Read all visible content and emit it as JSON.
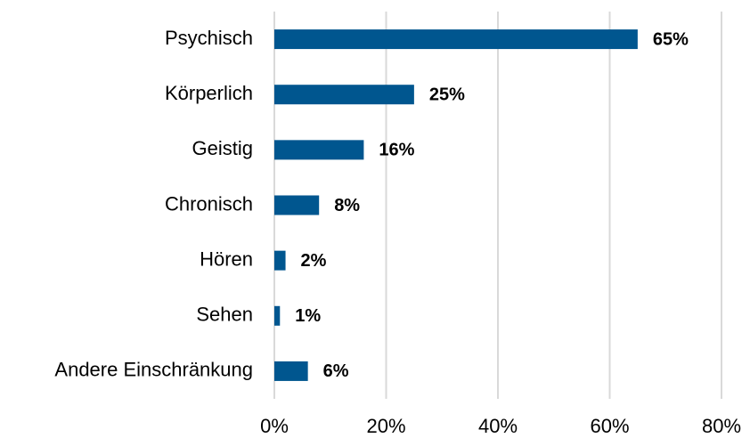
{
  "chart_data": {
    "type": "bar",
    "orientation": "horizontal",
    "categories": [
      "Psychisch",
      "Körperlich",
      "Geistig",
      "Chronisch",
      "Hören",
      "Sehen",
      "Andere Einschränkung"
    ],
    "values": [
      65,
      25,
      16,
      8,
      2,
      1,
      6
    ],
    "value_labels": [
      "65%",
      "25%",
      "16%",
      "8%",
      "2%",
      "1%",
      "6%"
    ],
    "color": "#00568f",
    "xlim": [
      0,
      80
    ],
    "xticks": [
      {
        "value": 0,
        "label": "0%"
      },
      {
        "value": 20,
        "label": "20%"
      },
      {
        "value": 40,
        "label": "40%"
      },
      {
        "value": 60,
        "label": "60%"
      },
      {
        "value": 80,
        "label": "80%"
      }
    ],
    "grid": true
  }
}
